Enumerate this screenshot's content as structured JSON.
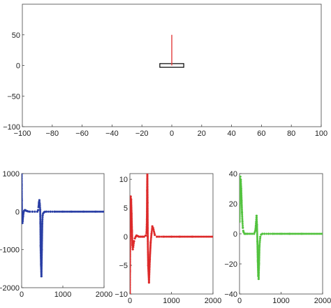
{
  "chart_data": [
    {
      "id": "sim",
      "type": "scatter",
      "title": "",
      "xlabel": "",
      "ylabel": "",
      "xlim": [
        -100,
        100
      ],
      "ylim": [
        -100,
        100
      ],
      "xticks": [
        -100,
        -80,
        -60,
        -40,
        -20,
        0,
        20,
        40,
        60,
        80,
        100
      ],
      "yticks": [
        -100,
        -50,
        0,
        50
      ],
      "grid": false,
      "objects": {
        "cart": {
          "x": [
            -8,
            8
          ],
          "y": [
            -3,
            3
          ],
          "color": "#000000"
        },
        "pole": {
          "x": [
            0,
            0
          ],
          "y": [
            0,
            50
          ],
          "color": "#e23b3b"
        }
      }
    },
    {
      "id": "blue",
      "type": "scatter",
      "title": "",
      "xlabel": "",
      "ylabel": "",
      "xlim": [
        0,
        2000
      ],
      "ylim": [
        -2000,
        1000
      ],
      "xticks": [
        0,
        1000,
        2000
      ],
      "yticks": [
        -2000,
        -1000,
        0,
        1000
      ],
      "grid": false,
      "color": "#2a3fa5",
      "series": [
        {
          "x": [
            0,
            2,
            4,
            8,
            12,
            18,
            25,
            35,
            45,
            60,
            80,
            100,
            130,
            160,
            200,
            260,
            320,
            380,
            400,
            410,
            420,
            430,
            440,
            450,
            455,
            460,
            470,
            480,
            490,
            500,
            510,
            520,
            540,
            560,
            600,
            700,
            800,
            1000,
            1200,
            1500,
            1800,
            2000
          ],
          "values": [
            1000,
            700,
            300,
            -150,
            -280,
            -300,
            -250,
            -120,
            -30,
            20,
            40,
            30,
            15,
            5,
            0,
            0,
            0,
            0,
            40,
            120,
            250,
            300,
            200,
            50,
            -300,
            -900,
            -1400,
            -1700,
            -1000,
            -300,
            -100,
            -50,
            -20,
            -5,
            0,
            0,
            0,
            0,
            0,
            0,
            0,
            0
          ]
        }
      ]
    },
    {
      "id": "red",
      "type": "scatter",
      "title": "",
      "xlabel": "",
      "ylabel": "",
      "xlim": [
        0,
        2000
      ],
      "ylim": [
        -10,
        11
      ],
      "xticks": [
        0,
        1000,
        2000
      ],
      "yticks": [
        -10,
        -5,
        0,
        5,
        10
      ],
      "grid": false,
      "color": "#dd2a2a",
      "series": [
        {
          "x": [
            0,
            2,
            5,
            10,
            20,
            30,
            40,
            50,
            60,
            70,
            80,
            100,
            120,
            140,
            160,
            190,
            220,
            260,
            300,
            340,
            380,
            400,
            410,
            415,
            420,
            425,
            430,
            440,
            460,
            480,
            500,
            520,
            540,
            560,
            600,
            650,
            700,
            800,
            1000,
            1200,
            1500,
            2000
          ],
          "values": [
            -10,
            -6,
            -2,
            3,
            7,
            6.5,
            4,
            1,
            -1.5,
            -2.2,
            -1.8,
            -0.8,
            -0.3,
            0,
            0.2,
            0.1,
            0,
            0,
            0,
            0,
            0.2,
            0.6,
            3,
            8,
            11,
            6,
            0,
            -5,
            -8,
            -4,
            -1,
            0.5,
            1.8,
            1.5,
            0.3,
            0,
            0,
            0,
            0,
            0,
            0,
            0
          ]
        }
      ]
    },
    {
      "id": "green",
      "type": "scatter",
      "title": "",
      "xlabel": "",
      "ylabel": "",
      "xlim": [
        0,
        2000
      ],
      "ylim": [
        -40,
        40
      ],
      "xticks": [
        0,
        1000,
        2000
      ],
      "yticks": [
        -40,
        -20,
        0,
        20,
        40
      ],
      "grid": false,
      "color": "#52c23e",
      "series": [
        {
          "x": [
            0,
            5,
            10,
            20,
            30,
            40,
            50,
            60,
            70,
            80,
            90,
            100,
            120,
            140,
            160,
            200,
            250,
            300,
            350,
            380,
            400,
            410,
            420,
            430,
            440,
            450,
            460,
            470,
            480,
            500,
            520,
            550,
            600,
            700,
            800,
            1000,
            1200,
            1500,
            2000
          ],
          "values": [
            8,
            20,
            35,
            38,
            36,
            30,
            22,
            14,
            8,
            4,
            2,
            1,
            0,
            0,
            0,
            0,
            0,
            0,
            0,
            2,
            8,
            12,
            6,
            -5,
            -18,
            -28,
            -30,
            -20,
            -8,
            -2,
            -0.5,
            0,
            0,
            0,
            0,
            0,
            0,
            0,
            0
          ]
        }
      ]
    }
  ]
}
